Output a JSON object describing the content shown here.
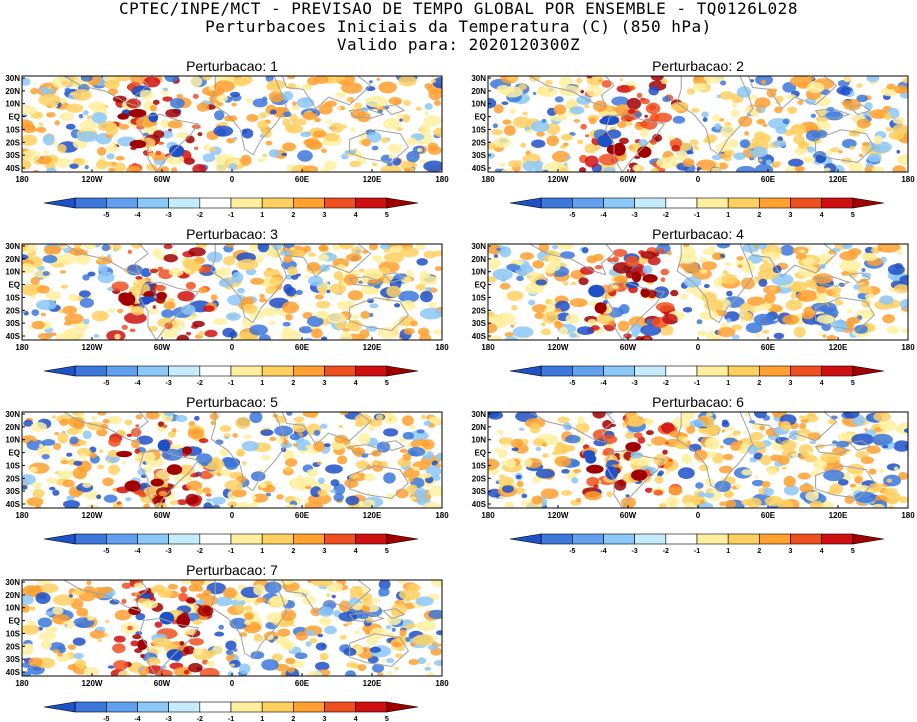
{
  "header": {
    "line1": "CPTEC/INPE/MCT - PREVISAO DE TEMPO GLOBAL POR ENSEMBLE - TQ0126L028",
    "line2": "Perturbacoes Iniciais da Temperatura (C) (850 hPa)",
    "line3": "Valido para: 2020120300Z"
  },
  "axes": {
    "lat_labels": [
      "30N",
      "20N",
      "10N",
      "EQ",
      "10S",
      "20S",
      "30S",
      "40S"
    ],
    "lon_labels": [
      "180",
      "120W",
      "60W",
      "0",
      "60E",
      "120E",
      "180"
    ]
  },
  "colorbar": {
    "tick_labels": [
      "-5",
      "-4",
      "-3",
      "-2",
      "-1",
      "1",
      "2",
      "3",
      "4",
      "5"
    ],
    "colors": [
      "#1e50c8",
      "#3c78dc",
      "#64a0f0",
      "#8cc8f8",
      "#c4ecfc",
      "#ffffff",
      "#fff0a0",
      "#ffd060",
      "#ffa030",
      "#f05020",
      "#d01010",
      "#a00000"
    ]
  },
  "panels": [
    {
      "title": "Perturbacao: 1"
    },
    {
      "title": "Perturbacao: 2"
    },
    {
      "title": "Perturbacao: 3"
    },
    {
      "title": "Perturbacao: 4"
    },
    {
      "title": "Perturbacao: 5"
    },
    {
      "title": "Perturbacao: 6"
    },
    {
      "title": "Perturbacao: 7"
    }
  ]
}
